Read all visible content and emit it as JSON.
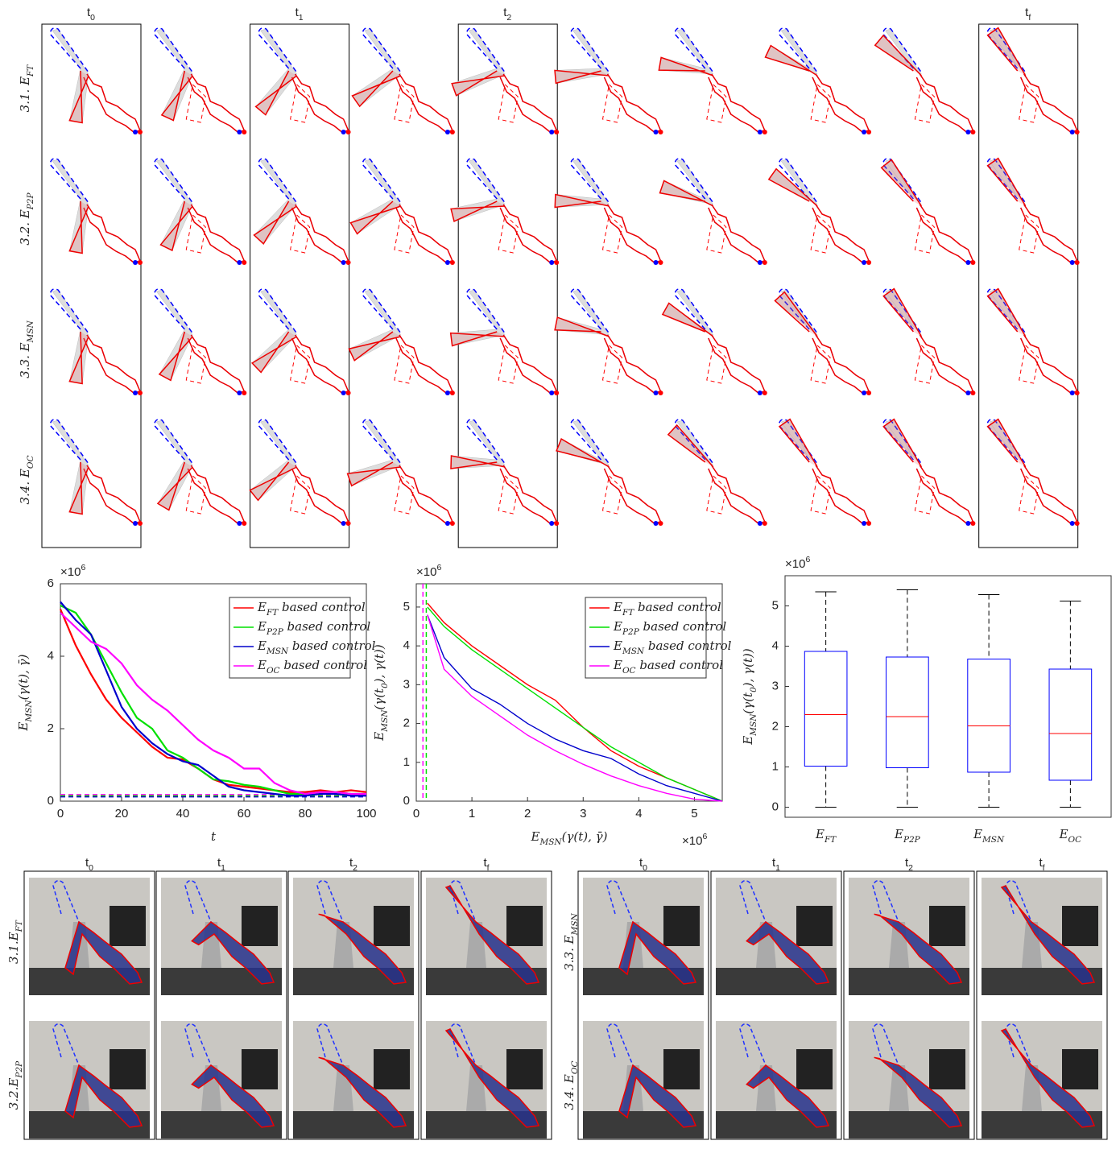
{
  "shape_grid": {
    "columns": [
      "t_0",
      "t_1",
      "t_2",
      "t_f"
    ],
    "rows": [
      "3.1. E_FT",
      "3.2. E_P2P",
      "3.3. E_MSN",
      "3.4. E_OC"
    ]
  },
  "chart_data": [
    {
      "type": "line",
      "xlabel": "t",
      "ylabel": "E_MSN(γ(t), γ̄)",
      "y_multiplier": "×10^6",
      "x": [
        0,
        5,
        10,
        15,
        20,
        25,
        30,
        35,
        40,
        45,
        50,
        55,
        60,
        65,
        70,
        75,
        80,
        85,
        90,
        95,
        100
      ],
      "xlim": [
        0,
        100
      ],
      "xticks": [
        0,
        20,
        40,
        60,
        80,
        100
      ],
      "ylim": [
        0,
        6
      ],
      "yticks": [
        0,
        2,
        4,
        6
      ],
      "legend": "upper right",
      "series": [
        {
          "name": "E_FT  based control",
          "color": "#ff0000",
          "values": [
            5.3,
            4.3,
            3.5,
            2.8,
            2.3,
            1.9,
            1.5,
            1.2,
            1.15,
            0.9,
            0.6,
            0.45,
            0.4,
            0.35,
            0.3,
            0.25,
            0.25,
            0.3,
            0.25,
            0.3,
            0.25
          ]
        },
        {
          "name": "E_P2P based control",
          "color": "#00e000",
          "values": [
            5.4,
            5.2,
            4.6,
            3.8,
            3.0,
            2.3,
            2.0,
            1.4,
            1.2,
            0.9,
            0.6,
            0.55,
            0.45,
            0.4,
            0.3,
            0.2,
            0.2,
            0.25,
            0.25,
            0.2,
            0.2
          ]
        },
        {
          "name": "E_MSN based control",
          "color": "#0000cc",
          "values": [
            5.5,
            5.0,
            4.6,
            3.6,
            2.6,
            2.0,
            1.6,
            1.3,
            1.1,
            1.0,
            0.7,
            0.4,
            0.3,
            0.25,
            0.2,
            0.15,
            0.15,
            0.2,
            0.2,
            0.15,
            0.15
          ]
        },
        {
          "name": "E_OC based control",
          "color": "#ff00ff",
          "values": [
            5.2,
            4.8,
            4.4,
            4.2,
            3.8,
            3.2,
            2.8,
            2.5,
            2.1,
            1.7,
            1.4,
            1.2,
            0.9,
            0.9,
            0.5,
            0.3,
            0.2,
            0.25,
            0.25,
            0.2,
            0.2
          ]
        }
      ],
      "hlines": [
        {
          "value": 0.12,
          "color": "#0000cc"
        },
        {
          "value": 0.15,
          "color": "#00e000"
        },
        {
          "value": 0.18,
          "color": "#ff00ff"
        }
      ]
    },
    {
      "type": "line",
      "xlabel": "E_MSN(γ(t), γ̄)",
      "ylabel": "E_MSN(γ(t_0), γ(t))",
      "x_multiplier": "×10^6",
      "y_multiplier": "×10^6",
      "xlim": [
        0,
        5.5
      ],
      "xticks": [
        0,
        1,
        2,
        3,
        4,
        5
      ],
      "ylim": [
        0,
        5.6
      ],
      "yticks": [
        0,
        1,
        2,
        3,
        4,
        5
      ],
      "legend": "upper right",
      "series": [
        {
          "name": "E_FT  based control",
          "color": "#ff0000",
          "x": [
            0.2,
            0.5,
            1,
            1.5,
            2,
            2.5,
            3,
            3.5,
            4,
            4.5,
            5,
            5.5
          ],
          "values": [
            5.1,
            4.6,
            4.0,
            3.5,
            3.0,
            2.6,
            1.9,
            1.3,
            0.9,
            0.6,
            0.3,
            0
          ]
        },
        {
          "name": "E_P2P based control",
          "color": "#00e000",
          "x": [
            0.2,
            0.5,
            1,
            1.5,
            2,
            2.5,
            3,
            3.5,
            4,
            4.5,
            5,
            5.5
          ],
          "values": [
            5.0,
            4.5,
            3.9,
            3.4,
            2.9,
            2.4,
            1.9,
            1.4,
            1.0,
            0.6,
            0.3,
            0
          ]
        },
        {
          "name": "E_MSN based control",
          "color": "#0000cc",
          "x": [
            0.2,
            0.5,
            1,
            1.5,
            2,
            2.5,
            3,
            3.5,
            4,
            4.5,
            5,
            5.5
          ],
          "values": [
            4.8,
            3.7,
            2.9,
            2.5,
            2.0,
            1.6,
            1.3,
            1.1,
            0.7,
            0.4,
            0.2,
            0
          ]
        },
        {
          "name": "E_OC based control",
          "color": "#ff00ff",
          "x": [
            0.2,
            0.5,
            1,
            1.5,
            2,
            2.5,
            3,
            3.5,
            4,
            4.5,
            5,
            5.5
          ],
          "values": [
            4.8,
            3.4,
            2.7,
            2.2,
            1.7,
            1.3,
            0.95,
            0.65,
            0.4,
            0.2,
            0.05,
            0
          ]
        }
      ],
      "vlines": [
        {
          "value": 0.12,
          "color": "#ff00ff"
        },
        {
          "value": 0.18,
          "color": "#00e000"
        }
      ]
    },
    {
      "type": "box",
      "ylabel": "E_MSN(γ(t_0), γ(t))",
      "y_multiplier": "×10^6",
      "categories": [
        "E_FT",
        "E_P2P",
        "E_MSN",
        "E_OC"
      ],
      "ylim": [
        -0.25,
        5.75
      ],
      "yticks": [
        0,
        1,
        2,
        3,
        4,
        5
      ],
      "box_color": "#0000ff",
      "median_color": "#ff0000",
      "boxes": [
        {
          "min": 0,
          "q1": 1.02,
          "median": 2.3,
          "q3": 3.87,
          "max": 5.35
        },
        {
          "min": 0,
          "q1": 0.98,
          "median": 2.25,
          "q3": 3.73,
          "max": 5.4
        },
        {
          "min": 0,
          "q1": 0.87,
          "median": 2.02,
          "q3": 3.68,
          "max": 5.28
        },
        {
          "min": 0,
          "q1": 0.67,
          "median": 1.83,
          "q3": 3.43,
          "max": 5.12
        }
      ]
    }
  ],
  "photo_grid": {
    "groups": [
      {
        "columns": [
          "t_0",
          "t_1",
          "t_2",
          "t_f"
        ],
        "rows": [
          "3.1.E_FT",
          "3.2.E_P2P"
        ]
      },
      {
        "columns": [
          "t_0",
          "t_1",
          "t_2",
          "t_f"
        ],
        "rows": [
          "3.3. E_MSN",
          "3.4. E_OC"
        ]
      }
    ]
  }
}
